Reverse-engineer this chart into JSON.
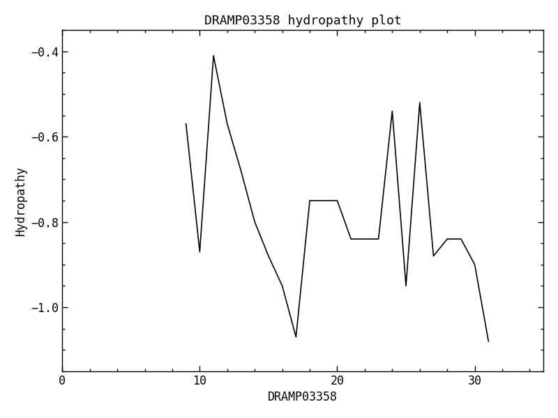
{
  "title": "DRAMP03358 hydropathy plot",
  "xlabel": "DRAMP03358",
  "ylabel": "Hydropathy",
  "x": [
    9,
    10,
    11,
    12,
    13,
    14,
    15,
    16,
    17,
    18,
    19,
    20,
    21,
    22,
    23,
    24,
    25,
    26,
    27,
    28,
    29,
    30,
    31
  ],
  "y": [
    -0.57,
    -0.87,
    -0.41,
    -0.57,
    -0.68,
    -0.8,
    -0.88,
    -0.95,
    -1.07,
    -0.75,
    -0.75,
    -0.75,
    -0.84,
    -0.84,
    -0.84,
    -0.54,
    -0.95,
    -0.52,
    -0.88,
    -0.84,
    -0.84,
    -0.9,
    -1.08
  ],
  "xlim": [
    0,
    35
  ],
  "ylim": [
    -1.15,
    -0.35
  ],
  "xticks": [
    0,
    10,
    20,
    30
  ],
  "yticks": [
    -0.4,
    -0.6,
    -0.8,
    -1.0
  ],
  "line_color": "#000000",
  "bg_color": "#ffffff",
  "title_fontsize": 13,
  "label_fontsize": 12,
  "tick_fontsize": 12
}
